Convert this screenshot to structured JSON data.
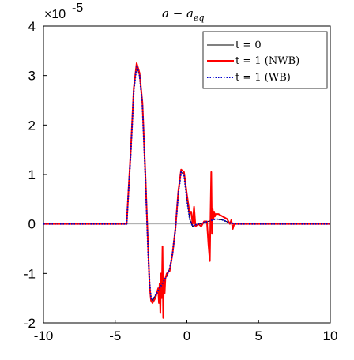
{
  "chart_data": {
    "type": "line",
    "title": "a − a_eq",
    "title_main": "a − a",
    "title_sub": "eq",
    "xlabel": "",
    "ylabel": "",
    "xlim": [
      -10,
      10
    ],
    "ylim": [
      -2,
      4
    ],
    "y_scale_label_base": "×10",
    "y_scale_label_exp": "-5",
    "x_ticks": [
      -10,
      -5,
      0,
      5,
      10
    ],
    "y_ticks": [
      -2,
      -1,
      0,
      1,
      2,
      3,
      4
    ],
    "x_tick_labels": [
      "-10",
      "-5",
      "0",
      "5",
      "10"
    ],
    "y_tick_labels": [
      "-2",
      "-1",
      "0",
      "1",
      "2",
      "3",
      "4"
    ],
    "grid": false,
    "legend_position": "top-right",
    "series": [
      {
        "name": "t = 0",
        "color": "#000000",
        "style": "solid",
        "x": [
          -10,
          -4.2,
          -3.9,
          -3.7,
          -3.5,
          -3.3,
          -3.1,
          -2.9,
          -2.7,
          -2.6,
          -2.5,
          -2.4,
          -2.2,
          -2.0,
          -1.8,
          -1.6,
          -1.4,
          -1.2,
          -1.0,
          -0.8,
          -0.6,
          -0.4,
          -0.2,
          0.0,
          0.2,
          0.4,
          0.6,
          0.8,
          1.0,
          1.2,
          1.5,
          2.0,
          2.5,
          3.0,
          3.5,
          4.0,
          10
        ],
        "y": [
          0.0,
          0.0,
          1.5,
          2.7,
          3.2,
          3.0,
          2.4,
          1.0,
          -0.6,
          -1.2,
          -1.5,
          -1.55,
          -1.45,
          -1.35,
          -1.25,
          -1.15,
          -1.05,
          -0.9,
          -0.6,
          -0.1,
          0.6,
          1.05,
          1.0,
          0.5,
          0.1,
          -0.05,
          -0.02,
          0.0,
          0.0,
          0.03,
          0.05,
          0.1,
          0.08,
          0.02,
          0.0,
          0.0,
          0.0
        ]
      },
      {
        "name": "t = 1 (NWB)",
        "color": "#ff0000",
        "style": "solid",
        "x": [
          -10,
          -4.2,
          -3.9,
          -3.7,
          -3.5,
          -3.3,
          -3.1,
          -2.9,
          -2.7,
          -2.6,
          -2.5,
          -2.4,
          -2.2,
          -2.0,
          -1.95,
          -1.9,
          -1.85,
          -1.8,
          -1.75,
          -1.7,
          -1.65,
          -1.6,
          -1.55,
          -1.5,
          -1.4,
          -1.2,
          -1.0,
          -0.8,
          -0.6,
          -0.4,
          -0.2,
          0.0,
          0.2,
          0.3,
          0.4,
          0.5,
          0.6,
          0.8,
          1.0,
          1.2,
          1.4,
          1.5,
          1.6,
          1.65,
          1.7,
          1.75,
          1.8,
          1.85,
          1.9,
          1.95,
          2.0,
          2.2,
          2.5,
          2.8,
          3.0,
          3.1,
          3.2,
          3.3,
          3.5,
          4.0,
          10
        ],
        "y": [
          0.0,
          0.0,
          1.55,
          2.75,
          3.25,
          3.05,
          2.45,
          1.05,
          -0.5,
          -1.25,
          -1.55,
          -1.6,
          -1.5,
          -1.3,
          -1.6,
          -1.2,
          -1.8,
          -1.0,
          -1.5,
          -0.45,
          -1.9,
          -1.1,
          -1.4,
          -1.1,
          -1.0,
          -0.95,
          -0.6,
          -0.1,
          0.65,
          1.1,
          1.05,
          0.6,
          0.2,
          0.25,
          0.0,
          0.35,
          -0.05,
          0.0,
          -0.05,
          0.05,
          0.05,
          -0.4,
          -0.75,
          0.2,
          1.05,
          -0.2,
          0.3,
          0.1,
          0.25,
          0.15,
          0.2,
          0.2,
          0.15,
          0.1,
          0.0,
          0.08,
          -0.1,
          0.0,
          0.0,
          0.0,
          0.0
        ]
      },
      {
        "name": "t = 1 (WB)",
        "color": "#0000cc",
        "style": "dotted",
        "x": [
          -10,
          -4.2,
          -3.9,
          -3.7,
          -3.5,
          -3.3,
          -3.1,
          -2.9,
          -2.7,
          -2.6,
          -2.5,
          -2.4,
          -2.2,
          -2.0,
          -1.8,
          -1.6,
          -1.4,
          -1.2,
          -1.0,
          -0.8,
          -0.6,
          -0.4,
          -0.2,
          0.0,
          0.2,
          0.4,
          0.6,
          0.8,
          1.0,
          1.2,
          1.5,
          2.0,
          2.5,
          3.0,
          3.5,
          4.0,
          10
        ],
        "y": [
          0.0,
          0.0,
          1.5,
          2.7,
          3.2,
          3.0,
          2.4,
          1.0,
          -0.6,
          -1.2,
          -1.5,
          -1.55,
          -1.45,
          -1.35,
          -1.25,
          -1.15,
          -1.05,
          -0.9,
          -0.6,
          -0.1,
          0.6,
          1.05,
          1.0,
          0.5,
          0.1,
          -0.05,
          -0.02,
          0.0,
          0.0,
          0.03,
          0.05,
          0.1,
          0.08,
          0.02,
          0.0,
          0.0,
          0.0
        ]
      }
    ],
    "legend": [
      {
        "prefix": "t = 0",
        "suffix": ""
      },
      {
        "prefix": "t = 1 ",
        "suffix": "(NWB)"
      },
      {
        "prefix": "t = 1 ",
        "suffix": "(WB)"
      }
    ]
  }
}
